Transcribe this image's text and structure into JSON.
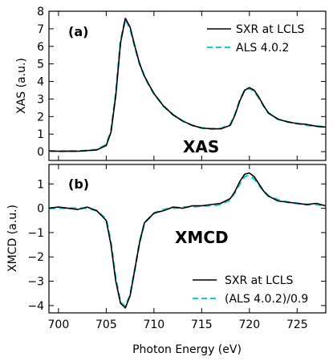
{
  "chart_data": [
    {
      "type": "line",
      "panel": "a",
      "panel_label": "(a)",
      "overlay_label": "XAS",
      "xlabel": "",
      "ylabel": "XAS (a.u.)",
      "xlim": [
        699,
        728
      ],
      "ylim": [
        -0.5,
        8
      ],
      "x_ticks": [
        700,
        705,
        710,
        715,
        720,
        725
      ],
      "y_ticks": [
        0,
        1,
        2,
        3,
        4,
        5,
        6,
        7,
        8
      ],
      "legend_position": "top-right",
      "series": [
        {
          "name": "SXR at LCLS",
          "color": "#000000",
          "style": "solid",
          "x": [
            699,
            700,
            701,
            702,
            703,
            704,
            705,
            705.5,
            706,
            706.5,
            707,
            707.5,
            708,
            708.5,
            709,
            709.5,
            710,
            711,
            712,
            713,
            714,
            715,
            716,
            717,
            718,
            718.5,
            719,
            719.5,
            720,
            720.5,
            721,
            721.5,
            722,
            723,
            724,
            725,
            726,
            727,
            728
          ],
          "y": [
            0.05,
            0.02,
            0.03,
            0.02,
            0.06,
            0.1,
            0.35,
            1.1,
            3.2,
            6.2,
            7.6,
            7.1,
            6.0,
            5.0,
            4.3,
            3.8,
            3.3,
            2.6,
            2.1,
            1.75,
            1.5,
            1.35,
            1.3,
            1.3,
            1.5,
            2.1,
            2.9,
            3.5,
            3.65,
            3.5,
            3.1,
            2.6,
            2.2,
            1.85,
            1.7,
            1.6,
            1.55,
            1.45,
            1.4
          ]
        },
        {
          "name": "ALS 4.0.2",
          "color": "#2ec4c4",
          "style": "dashed",
          "x": [
            699,
            700,
            701,
            702,
            703,
            704,
            705,
            705.5,
            706,
            706.5,
            707,
            707.5,
            708,
            708.5,
            709,
            709.5,
            710,
            711,
            712,
            713,
            714,
            715,
            716,
            717,
            718,
            718.5,
            719,
            719.5,
            720,
            720.5,
            721,
            721.5,
            722,
            723,
            724,
            725,
            726,
            727,
            728
          ],
          "y": [
            0.02,
            0.02,
            0.03,
            0.04,
            0.06,
            0.12,
            0.4,
            1.2,
            3.3,
            6.3,
            7.55,
            7.0,
            5.95,
            5.0,
            4.3,
            3.75,
            3.3,
            2.6,
            2.1,
            1.75,
            1.5,
            1.35,
            1.3,
            1.32,
            1.55,
            2.15,
            2.95,
            3.5,
            3.6,
            3.45,
            3.05,
            2.6,
            2.2,
            1.85,
            1.7,
            1.6,
            1.5,
            1.45,
            1.4
          ]
        }
      ]
    },
    {
      "type": "line",
      "panel": "b",
      "panel_label": "(b)",
      "overlay_label": "XMCD",
      "xlabel": "Photon Energy (eV)",
      "ylabel": "XMCD (a.u.)",
      "xlim": [
        699,
        728
      ],
      "ylim": [
        -4.3,
        1.8
      ],
      "x_ticks": [
        700,
        705,
        710,
        715,
        720,
        725
      ],
      "y_ticks": [
        -4,
        -3,
        -2,
        -1,
        0,
        1
      ],
      "legend_position": "bottom-right",
      "series": [
        {
          "name": "SXR at LCLS",
          "color": "#000000",
          "style": "solid",
          "x": [
            699,
            700,
            701,
            702,
            703,
            704,
            705,
            705.5,
            706,
            706.5,
            707,
            707.5,
            708,
            708.5,
            709,
            710,
            711,
            712,
            713,
            714,
            715,
            716,
            717,
            718,
            718.5,
            719,
            719.5,
            720,
            720.5,
            721,
            721.5,
            722,
            723,
            724,
            725,
            726,
            727,
            728
          ],
          "y": [
            0.0,
            0.05,
            0.0,
            -0.05,
            0.05,
            -0.1,
            -0.5,
            -1.5,
            -3.0,
            -3.9,
            -4.1,
            -3.6,
            -2.5,
            -1.4,
            -0.6,
            -0.2,
            -0.1,
            0.05,
            0.0,
            0.1,
            0.1,
            0.15,
            0.2,
            0.4,
            0.7,
            1.1,
            1.4,
            1.45,
            1.3,
            1.0,
            0.7,
            0.5,
            0.3,
            0.25,
            0.2,
            0.15,
            0.2,
            0.1
          ]
        },
        {
          "name": "(ALS 4.0.2)/0.9",
          "color": "#2ec4c4",
          "style": "dashed",
          "x": [
            699,
            700,
            701,
            702,
            703,
            704,
            705,
            705.5,
            706,
            706.5,
            707,
            707.5,
            708,
            708.5,
            709,
            710,
            711,
            712,
            713,
            714,
            715,
            716,
            717,
            718,
            718.5,
            719,
            719.5,
            720,
            720.5,
            721,
            721.5,
            722,
            723,
            724,
            725,
            726,
            727,
            728
          ],
          "y": [
            0.0,
            0.0,
            0.0,
            0.0,
            0.0,
            -0.1,
            -0.45,
            -1.4,
            -2.9,
            -3.85,
            -4.05,
            -3.55,
            -2.5,
            -1.4,
            -0.6,
            -0.2,
            -0.05,
            0.0,
            0.05,
            0.05,
            0.1,
            0.1,
            0.15,
            0.35,
            0.65,
            1.0,
            1.3,
            1.35,
            1.2,
            0.95,
            0.7,
            0.5,
            0.35,
            0.25,
            0.2,
            0.15,
            0.15,
            0.1
          ]
        }
      ]
    }
  ]
}
